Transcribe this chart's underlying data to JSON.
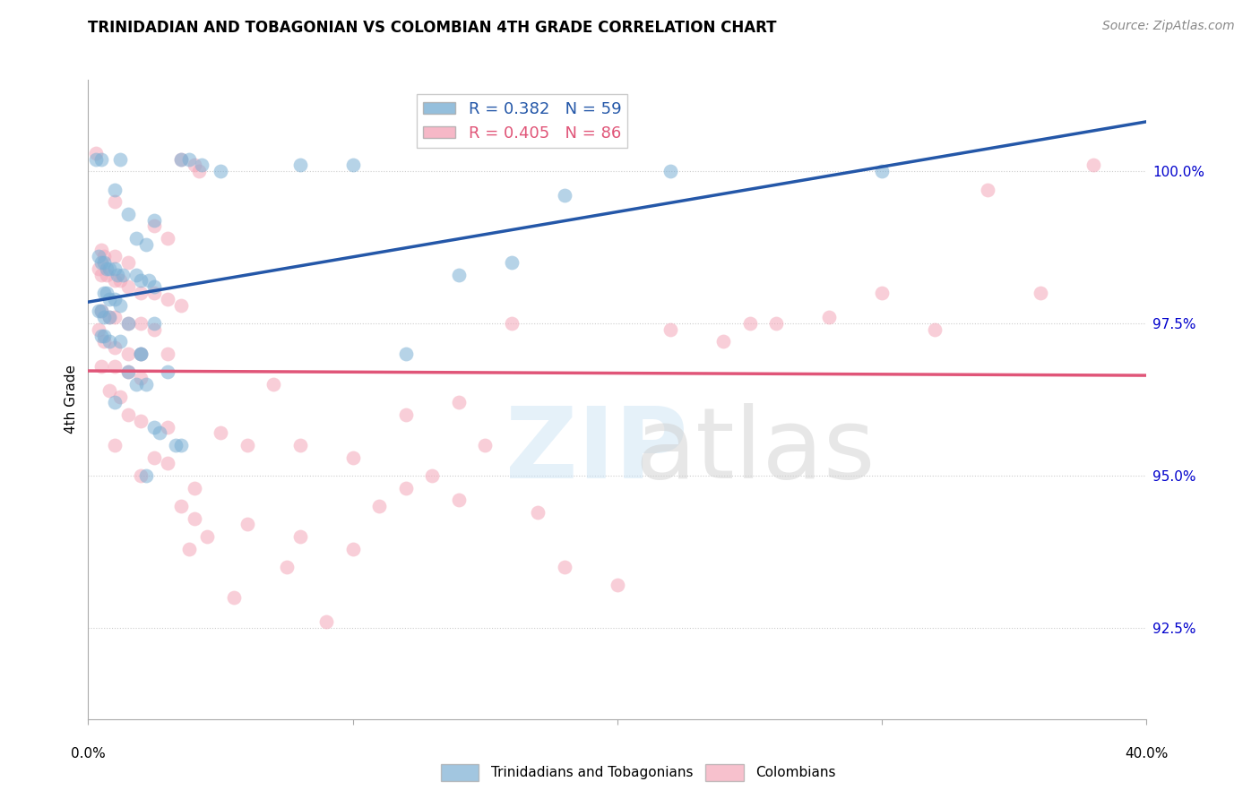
{
  "title": "TRINIDADIAN AND TOBAGONIAN VS COLOMBIAN 4TH GRADE CORRELATION CHART",
  "source": "Source: ZipAtlas.com",
  "ylabel": "4th Grade",
  "ytick_labels": [
    "92.5%",
    "95.0%",
    "97.5%",
    "100.0%"
  ],
  "ytick_values": [
    92.5,
    95.0,
    97.5,
    100.0
  ],
  "xmin": 0.0,
  "xmax": 40.0,
  "ymin": 91.0,
  "ymax": 101.5,
  "blue_color": "#7bafd4",
  "pink_color": "#f4a7b9",
  "blue_line_color": "#2457a8",
  "pink_line_color": "#e05578",
  "blue_scatter": [
    [
      0.3,
      100.2
    ],
    [
      0.5,
      100.2
    ],
    [
      1.2,
      100.2
    ],
    [
      3.5,
      100.2
    ],
    [
      3.8,
      100.2
    ],
    [
      4.3,
      100.1
    ],
    [
      5.0,
      100.0
    ],
    [
      1.0,
      99.7
    ],
    [
      1.5,
      99.3
    ],
    [
      2.5,
      99.2
    ],
    [
      1.8,
      98.9
    ],
    [
      2.2,
      98.8
    ],
    [
      0.4,
      98.6
    ],
    [
      0.5,
      98.5
    ],
    [
      0.6,
      98.5
    ],
    [
      0.7,
      98.4
    ],
    [
      0.8,
      98.4
    ],
    [
      1.0,
      98.4
    ],
    [
      1.1,
      98.3
    ],
    [
      1.3,
      98.3
    ],
    [
      1.8,
      98.3
    ],
    [
      2.0,
      98.2
    ],
    [
      2.3,
      98.2
    ],
    [
      2.5,
      98.1
    ],
    [
      0.6,
      98.0
    ],
    [
      0.7,
      98.0
    ],
    [
      0.8,
      97.9
    ],
    [
      1.0,
      97.9
    ],
    [
      1.2,
      97.8
    ],
    [
      0.4,
      97.7
    ],
    [
      0.5,
      97.7
    ],
    [
      0.6,
      97.6
    ],
    [
      0.8,
      97.6
    ],
    [
      1.5,
      97.5
    ],
    [
      2.5,
      97.5
    ],
    [
      0.5,
      97.3
    ],
    [
      0.6,
      97.3
    ],
    [
      0.8,
      97.2
    ],
    [
      1.2,
      97.2
    ],
    [
      2.0,
      97.0
    ],
    [
      2.0,
      97.0
    ],
    [
      1.5,
      96.7
    ],
    [
      3.0,
      96.7
    ],
    [
      1.8,
      96.5
    ],
    [
      2.2,
      96.5
    ],
    [
      1.0,
      96.2
    ],
    [
      2.5,
      95.8
    ],
    [
      2.7,
      95.7
    ],
    [
      3.3,
      95.5
    ],
    [
      3.5,
      95.5
    ],
    [
      2.2,
      95.0
    ],
    [
      8.0,
      100.1
    ],
    [
      10.0,
      100.1
    ],
    [
      18.0,
      99.6
    ],
    [
      22.0,
      100.0
    ],
    [
      30.0,
      100.0
    ],
    [
      14.0,
      98.3
    ],
    [
      16.0,
      98.5
    ],
    [
      12.0,
      97.0
    ]
  ],
  "pink_scatter": [
    [
      0.3,
      100.3
    ],
    [
      3.5,
      100.2
    ],
    [
      4.0,
      100.1
    ],
    [
      4.2,
      100.0
    ],
    [
      1.0,
      99.5
    ],
    [
      2.5,
      99.1
    ],
    [
      3.0,
      98.9
    ],
    [
      0.5,
      98.7
    ],
    [
      0.6,
      98.6
    ],
    [
      1.0,
      98.6
    ],
    [
      1.5,
      98.5
    ],
    [
      0.4,
      98.4
    ],
    [
      0.5,
      98.3
    ],
    [
      0.7,
      98.3
    ],
    [
      1.0,
      98.2
    ],
    [
      1.2,
      98.2
    ],
    [
      1.5,
      98.1
    ],
    [
      2.0,
      98.0
    ],
    [
      2.5,
      98.0
    ],
    [
      3.0,
      97.9
    ],
    [
      3.5,
      97.8
    ],
    [
      0.5,
      97.7
    ],
    [
      0.8,
      97.6
    ],
    [
      1.0,
      97.6
    ],
    [
      1.5,
      97.5
    ],
    [
      2.0,
      97.5
    ],
    [
      2.5,
      97.4
    ],
    [
      0.4,
      97.4
    ],
    [
      0.6,
      97.2
    ],
    [
      1.0,
      97.1
    ],
    [
      1.5,
      97.0
    ],
    [
      2.0,
      97.0
    ],
    [
      3.0,
      97.0
    ],
    [
      0.5,
      96.8
    ],
    [
      1.0,
      96.8
    ],
    [
      1.5,
      96.7
    ],
    [
      2.0,
      96.6
    ],
    [
      0.8,
      96.4
    ],
    [
      1.2,
      96.3
    ],
    [
      1.5,
      96.0
    ],
    [
      2.0,
      95.9
    ],
    [
      3.0,
      95.8
    ],
    [
      5.0,
      95.7
    ],
    [
      1.0,
      95.5
    ],
    [
      2.5,
      95.3
    ],
    [
      3.0,
      95.2
    ],
    [
      2.0,
      95.0
    ],
    [
      4.0,
      94.8
    ],
    [
      3.5,
      94.5
    ],
    [
      4.0,
      94.3
    ],
    [
      6.0,
      95.5
    ],
    [
      8.0,
      95.5
    ],
    [
      10.0,
      95.3
    ],
    [
      7.0,
      96.5
    ],
    [
      12.0,
      96.0
    ],
    [
      14.0,
      96.2
    ],
    [
      16.0,
      97.5
    ],
    [
      12.0,
      94.8
    ],
    [
      14.0,
      94.6
    ],
    [
      17.0,
      94.4
    ],
    [
      20.0,
      93.2
    ],
    [
      22.0,
      97.4
    ],
    [
      24.0,
      97.2
    ],
    [
      26.0,
      97.5
    ],
    [
      28.0,
      97.6
    ],
    [
      30.0,
      98.0
    ],
    [
      32.0,
      97.4
    ],
    [
      36.0,
      98.0
    ],
    [
      25.0,
      97.5
    ],
    [
      38.0,
      100.1
    ],
    [
      34.0,
      99.7
    ],
    [
      18.0,
      93.5
    ],
    [
      9.0,
      92.6
    ],
    [
      6.0,
      94.2
    ],
    [
      8.0,
      94.0
    ],
    [
      10.0,
      93.8
    ],
    [
      15.0,
      95.5
    ],
    [
      5.5,
      93.0
    ],
    [
      7.5,
      93.5
    ],
    [
      11.0,
      94.5
    ],
    [
      13.0,
      95.0
    ],
    [
      4.5,
      94.0
    ],
    [
      3.8,
      93.8
    ]
  ]
}
